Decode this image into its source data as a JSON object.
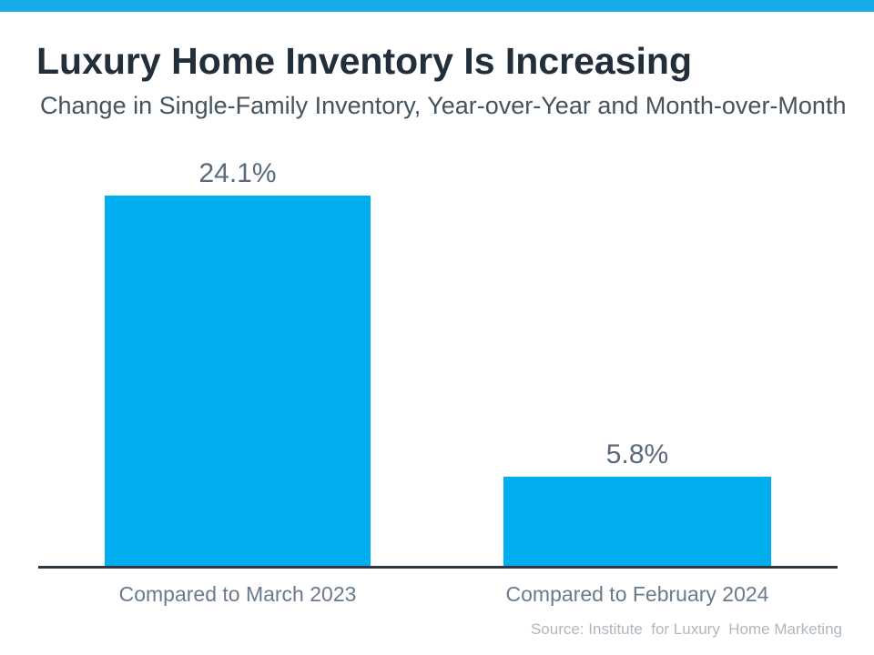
{
  "page": {
    "title": "Luxury Home Inventory Is Increasing",
    "subtitle": "Change in Single-Family Inventory, Year-over-Year and Month-over-Month",
    "source": "Source: Institute  for Luxury  Home Marketing"
  },
  "colors": {
    "top_strip": "#17ABEA",
    "bar": "#00AEEF",
    "title_text": "#222E3A",
    "subtitle_text": "#44535E",
    "value_label_text": "#5A6A7E",
    "category_label_text": "#6A7A8C",
    "axis_line": "#2B3844",
    "source_text": "#AFB7BE"
  },
  "chart_data": {
    "type": "bar",
    "title": "Luxury Home Inventory Is Increasing",
    "subtitle": "Change in Single-Family Inventory, Year-over-Year and Month-over-Month",
    "categories": [
      "Compared to March 2023",
      "Compared to February 2024"
    ],
    "values": [
      24.1,
      5.8
    ],
    "value_labels": [
      "24.1%",
      "5.8%"
    ],
    "xlabel": "",
    "ylabel": "",
    "ylim": [
      0,
      25.6
    ],
    "grid": false,
    "legend": false,
    "bar_color": "#00AEEF",
    "source": "Source: Institute  for Luxury  Home Marketing"
  }
}
